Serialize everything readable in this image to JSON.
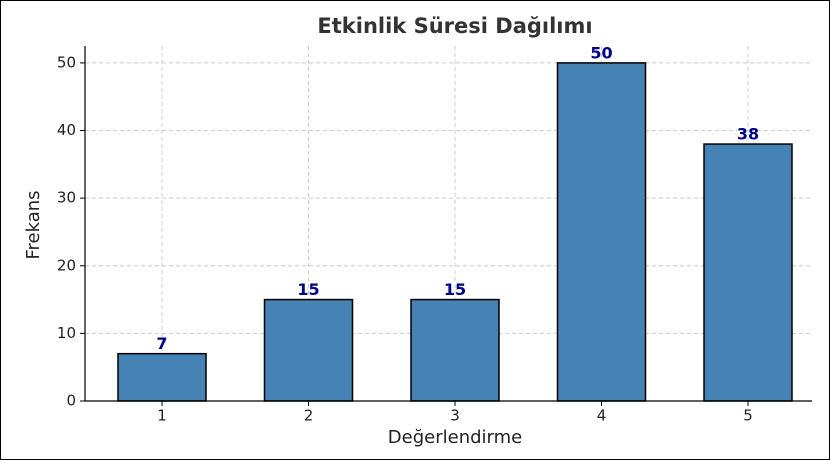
{
  "chart_data": {
    "type": "bar",
    "title": "Etkinlik Süresi Dağılımı",
    "x_label": "Değerlendirme",
    "y_label": "Frekans",
    "categories": [
      "1",
      "2",
      "3",
      "4",
      "5"
    ],
    "values": [
      7,
      15,
      15,
      50,
      38
    ],
    "color": "#4682b4",
    "edge_color": "#000000",
    "label_color": "#00008b",
    "ylim": [
      0,
      52.5
    ],
    "yticks": [
      0,
      10,
      20,
      30,
      40,
      50
    ],
    "grid": true
  }
}
